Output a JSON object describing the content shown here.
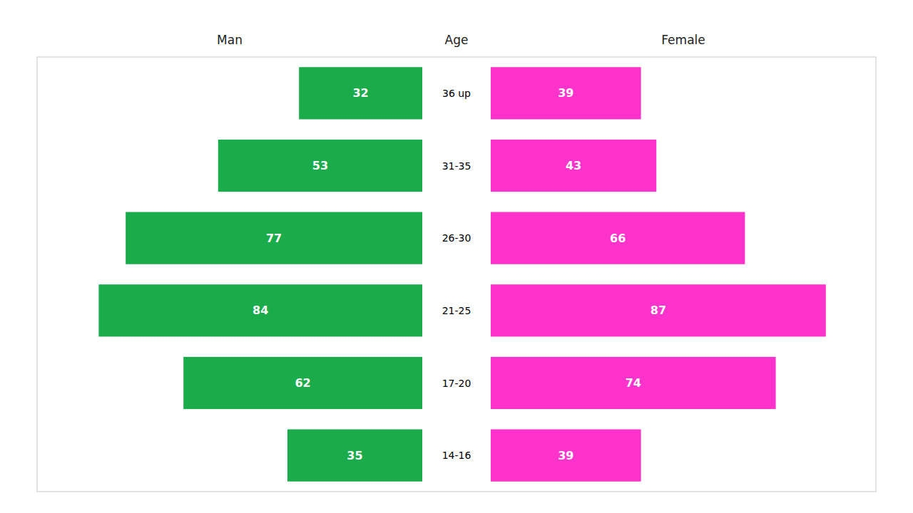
{
  "chart_data": {
    "type": "bar",
    "orientation": "horizontal",
    "ylabel": "Age",
    "categories": [
      "14-16",
      "17-20",
      "21-25",
      "26-30",
      "31-35",
      "36 up"
    ],
    "series": [
      {
        "name": "Man",
        "color": "#1aab4b",
        "values": [
          35,
          62,
          84,
          77,
          53,
          32
        ]
      },
      {
        "name": "Female",
        "color": "#ff33cc",
        "values": [
          39,
          74,
          87,
          66,
          43,
          39
        ]
      }
    ],
    "xlim": [
      0,
      100
    ],
    "grid": false,
    "data_labels": true,
    "tick_labels": "y"
  }
}
